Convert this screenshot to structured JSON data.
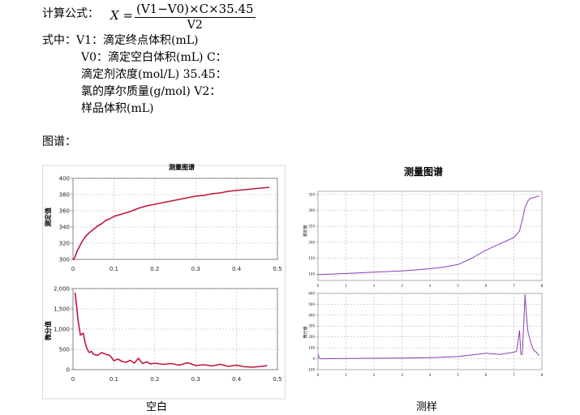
{
  "formula": {
    "label": "计算公式：",
    "lhs": "X =",
    "numerator": "(V1−V0)×C×35.45",
    "denominator": "V2"
  },
  "definitions": {
    "intro": "式中：V1：滴定终点体积(mL)",
    "line2": "V0：滴定空白体积(mL)  C：",
    "line3": "滴定剂浓度(mol/L) 35.45：",
    "line4": "氯的摩尔质量(g/mol) V2：",
    "line5": "样品体积(mL)"
  },
  "spectrum_label": "图谱：",
  "left_panel": {
    "title": "测量图谱",
    "top_ylabel": "测定值",
    "bottom_ylabel": "微分值",
    "caption": "空白"
  },
  "right_panel": {
    "title": "测量图谱",
    "top_ylabel": "测定值",
    "bottom_ylabel": "微分值",
    "caption": "测样"
  },
  "chart_data": [
    {
      "type": "line",
      "title": "测量图谱",
      "ylabel": "测定值",
      "xlim": [
        0,
        0.5
      ],
      "ylim": [
        300,
        400
      ],
      "x_ticks": [
        "0",
        "0.1",
        "0.2",
        "0.3",
        "0.4",
        "0.5"
      ],
      "y_ticks": [
        "300",
        "320",
        "340",
        "360",
        "380",
        "400"
      ],
      "grid": true,
      "color": "#c0163d",
      "series": [
        {
          "x": [
            0,
            0.005,
            0.01,
            0.02,
            0.03,
            0.04,
            0.05,
            0.06,
            0.07,
            0.08,
            0.09,
            0.1,
            0.12,
            0.14,
            0.16,
            0.18,
            0.2,
            0.22,
            0.24,
            0.26,
            0.28,
            0.3,
            0.32,
            0.34,
            0.36,
            0.38,
            0.4,
            0.42,
            0.44,
            0.46,
            0.48
          ],
          "y": [
            299,
            303,
            310,
            320,
            328,
            333,
            337,
            341,
            344,
            348,
            350,
            353,
            356,
            359,
            363,
            366,
            368,
            370,
            372,
            374,
            376,
            378,
            379,
            381,
            382,
            384,
            385,
            386,
            387,
            388,
            389
          ]
        }
      ]
    },
    {
      "type": "line",
      "ylabel": "微分值",
      "xlim": [
        0,
        0.5
      ],
      "ylim": [
        0,
        2000
      ],
      "x_ticks": [
        "0",
        "0.1",
        "0.2",
        "0.3",
        "0.4",
        "0.5"
      ],
      "y_ticks": [
        "0",
        "500",
        "1,000",
        "1,500",
        "2,000"
      ],
      "grid": true,
      "color": "#c0163d",
      "series": [
        {
          "x": [
            0.005,
            0.008,
            0.012,
            0.018,
            0.025,
            0.03,
            0.035,
            0.04,
            0.045,
            0.05,
            0.06,
            0.07,
            0.08,
            0.09,
            0.1,
            0.11,
            0.12,
            0.13,
            0.14,
            0.15,
            0.16,
            0.17,
            0.18,
            0.19,
            0.2,
            0.22,
            0.24,
            0.26,
            0.28,
            0.3,
            0.32,
            0.34,
            0.36,
            0.38,
            0.4,
            0.42,
            0.44,
            0.46,
            0.475
          ],
          "y": [
            1900,
            1650,
            1250,
            850,
            900,
            650,
            500,
            420,
            450,
            380,
            350,
            420,
            380,
            350,
            220,
            260,
            200,
            180,
            230,
            160,
            280,
            150,
            190,
            140,
            160,
            130,
            150,
            110,
            170,
            100,
            120,
            90,
            130,
            80,
            110,
            70,
            60,
            80,
            100
          ]
        }
      ]
    },
    {
      "type": "line",
      "title": "测量图谱",
      "ylabel": "测定值",
      "xlim": [
        0,
        8
      ],
      "ylim": [
        80,
        360
      ],
      "x_ticks": [
        "0",
        "1",
        "2",
        "3",
        "4",
        "5",
        "6",
        "7",
        "8"
      ],
      "y_ticks": [
        "100",
        "150",
        "200",
        "250",
        "300",
        "350"
      ],
      "grid": true,
      "color": "#8b3db8",
      "series": [
        {
          "x": [
            0,
            0.5,
            1,
            1.5,
            2,
            2.5,
            3,
            3.5,
            4,
            4.5,
            5,
            5.5,
            6,
            6.5,
            7,
            7.2,
            7.3,
            7.4,
            7.5,
            7.6,
            7.7,
            7.8,
            7.9
          ],
          "y": [
            98,
            100,
            102,
            104,
            106,
            108,
            110,
            113,
            117,
            122,
            130,
            150,
            175,
            195,
            215,
            235,
            270,
            310,
            330,
            338,
            340,
            343,
            345
          ]
        }
      ]
    },
    {
      "type": "line",
      "ylabel": "微分值",
      "xlim": [
        0,
        8
      ],
      "ylim": [
        -100,
        600
      ],
      "x_ticks": [
        "0",
        "1",
        "2",
        "3",
        "4",
        "5",
        "6",
        "7",
        "8"
      ],
      "y_ticks": [
        "-100",
        "0",
        "100",
        "200",
        "300",
        "400",
        "500",
        "600"
      ],
      "grid": true,
      "color": "#8b3db8",
      "series": [
        {
          "x": [
            0,
            0.05,
            0.1,
            0.2,
            1,
            2,
            3,
            4,
            5,
            5.5,
            6,
            6.5,
            7,
            7.1,
            7.2,
            7.25,
            7.3,
            7.35,
            7.4,
            7.45,
            7.5,
            7.6,
            7.7,
            7.8,
            7.9
          ],
          "y": [
            40,
            5,
            0,
            0,
            2,
            4,
            6,
            10,
            20,
            35,
            50,
            40,
            60,
            70,
            260,
            40,
            40,
            320,
            590,
            400,
            250,
            150,
            80,
            60,
            30
          ]
        }
      ]
    }
  ]
}
